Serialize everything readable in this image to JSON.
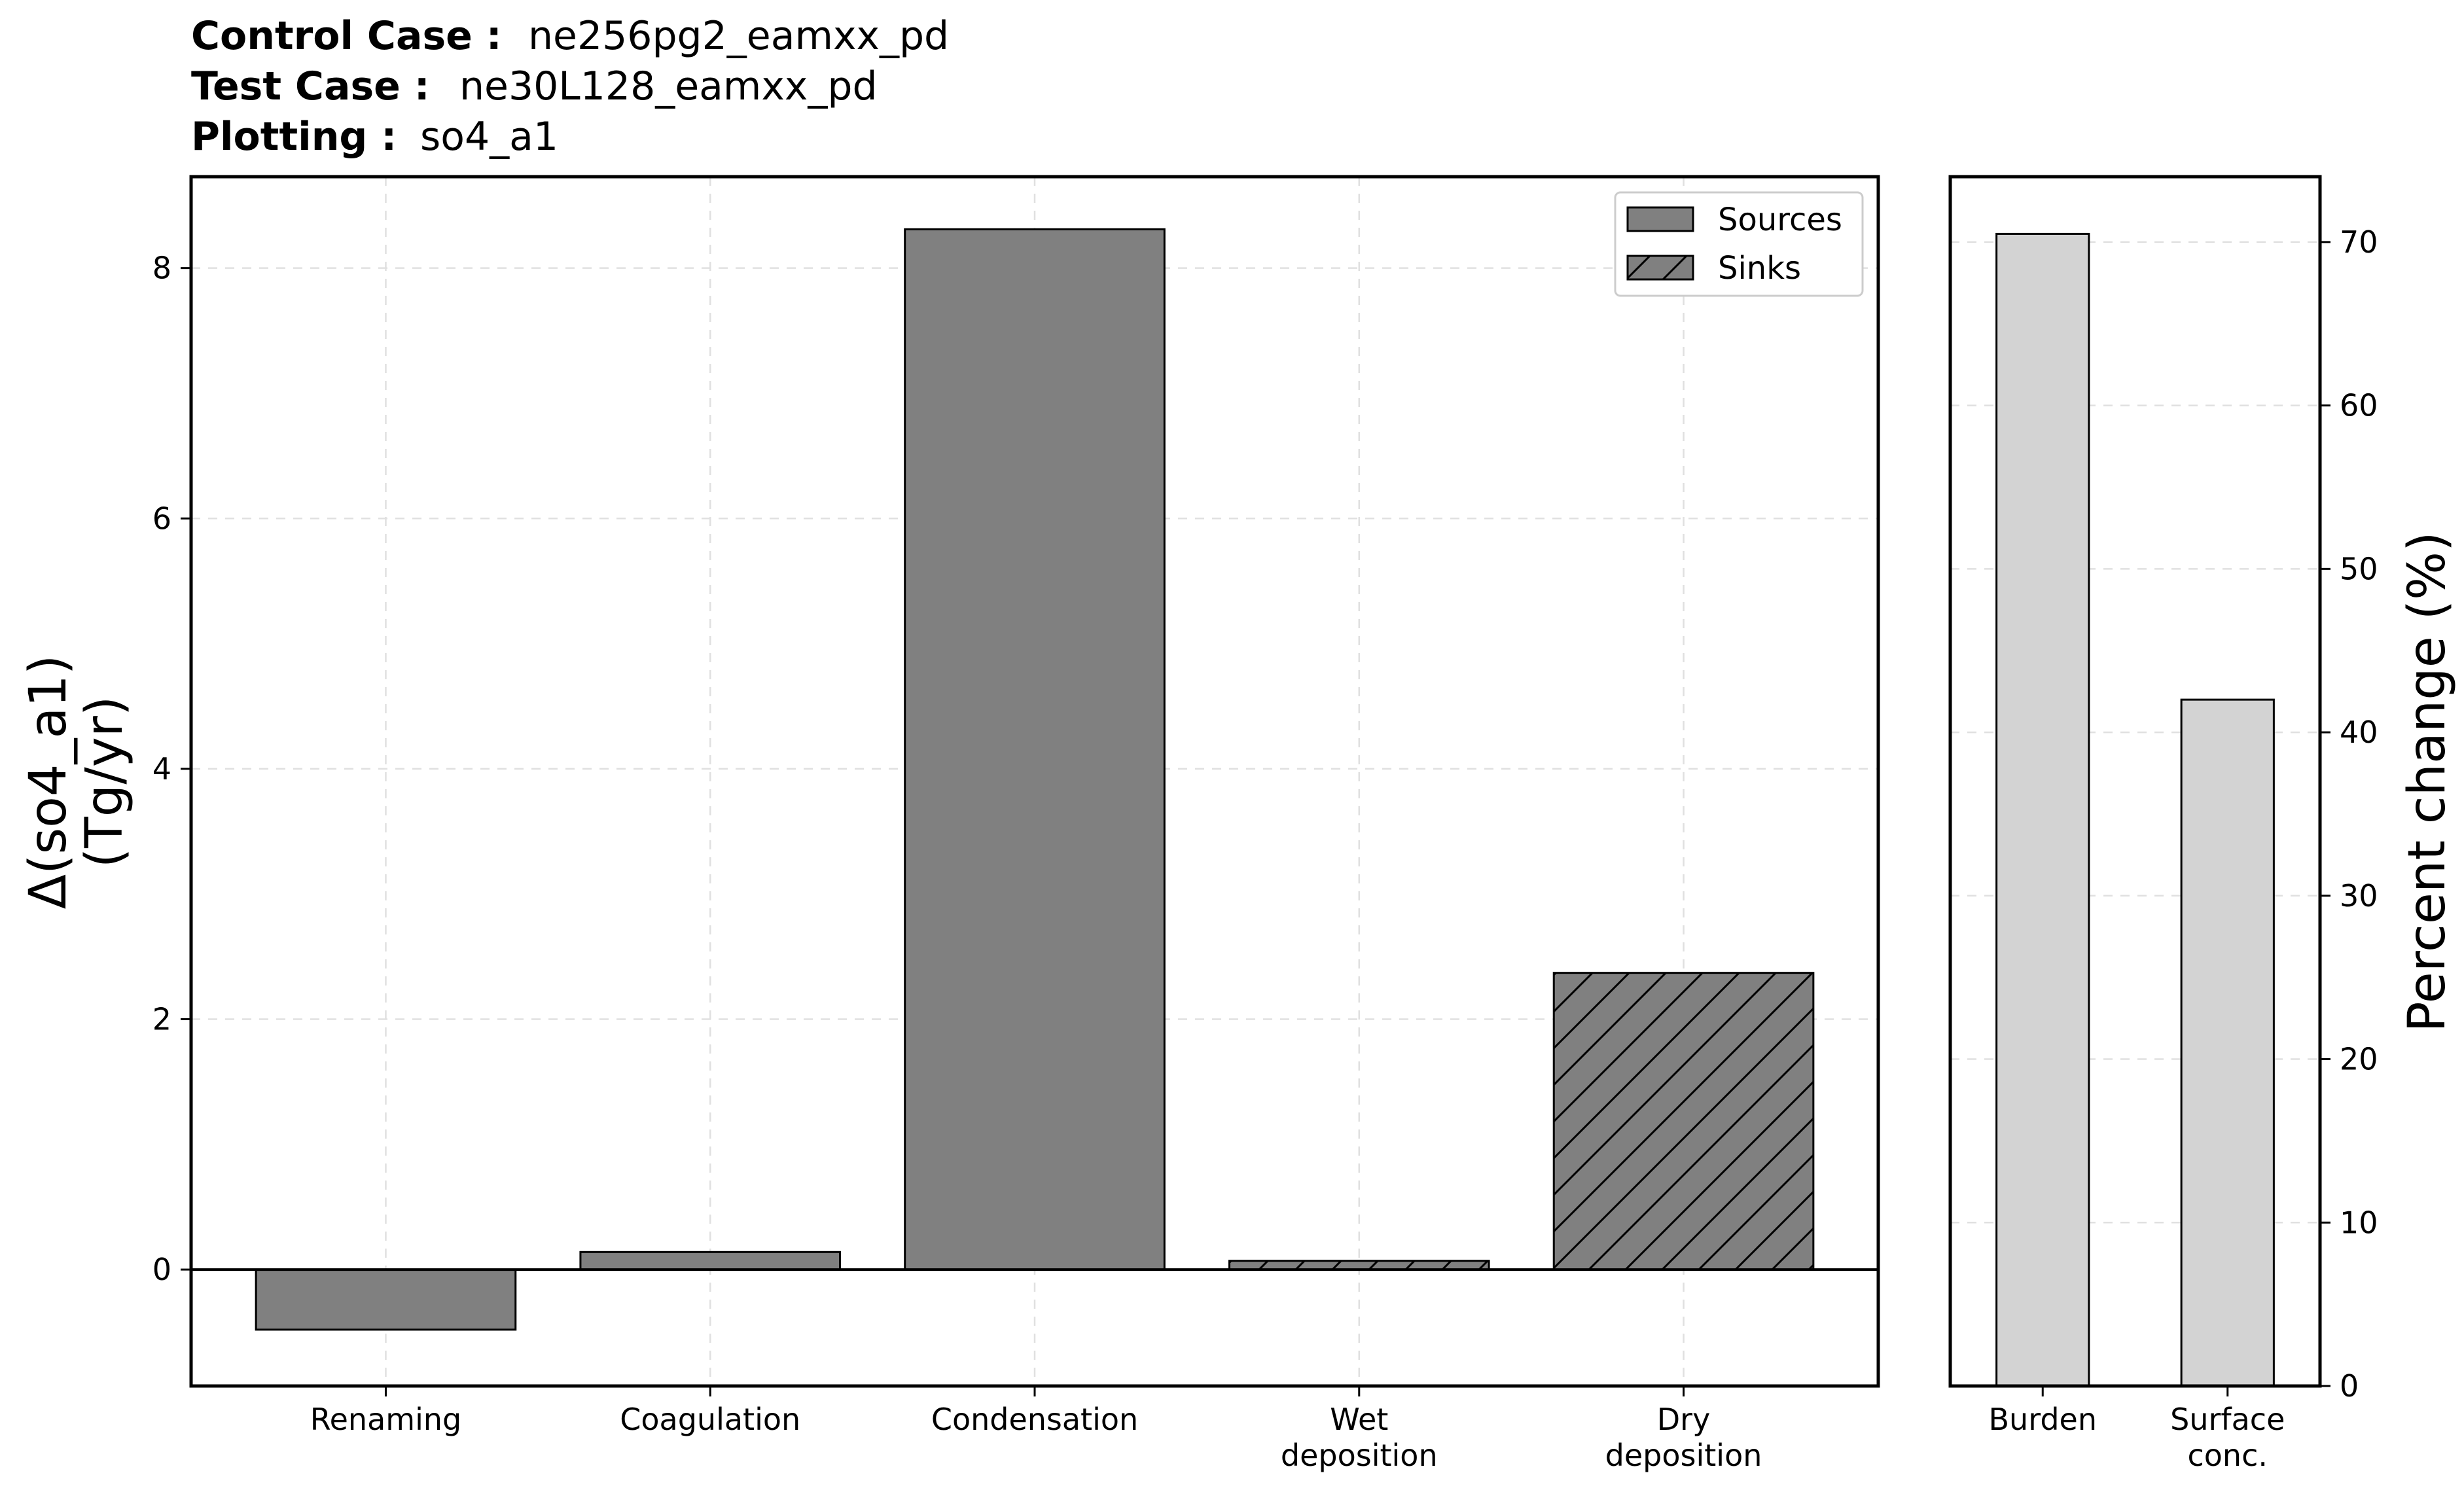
{
  "header": {
    "control_label": "Control Case :",
    "control_value": "ne256pg2_eamxx_pd",
    "test_label": "Test Case :",
    "test_value": "ne30L128_eamxx_pd",
    "plotting_label": "Plotting :",
    "plotting_value": "so4_a1"
  },
  "chart_data": [
    {
      "type": "bar",
      "panel": "budget",
      "categories": [
        [
          "Renaming"
        ],
        [
          "Coagulation"
        ],
        [
          "Condensation"
        ],
        [
          "Wet",
          "deposition"
        ],
        [
          "Dry",
          "deposition"
        ]
      ],
      "values": [
        -0.48,
        0.14,
        8.31,
        0.07,
        2.37
      ],
      "kinds": [
        "Sources",
        "Sources",
        "Sources",
        "Sinks",
        "Sinks"
      ],
      "ylabel": [
        "Δ(so4_a1)",
        "(Tg/yr)"
      ],
      "ylim": [
        -0.93,
        8.73
      ],
      "yticks": [
        0,
        2,
        4,
        6,
        8
      ],
      "grid": true,
      "bar_color": "#808080",
      "legend": {
        "placement": "top-right",
        "entries": [
          {
            "name": "Sources",
            "hatch": false
          },
          {
            "name": "Sinks",
            "hatch": true
          }
        ]
      }
    },
    {
      "type": "bar",
      "panel": "percent-change",
      "categories": [
        [
          "Burden"
        ],
        [
          "Surface",
          "conc."
        ]
      ],
      "values": [
        70.5,
        42.0
      ],
      "ylabel": "Percent change (%)",
      "ylim": [
        0,
        74
      ],
      "yticks": [
        0,
        10,
        20,
        30,
        40,
        50,
        60,
        70
      ],
      "yaxis_side": "right",
      "grid": true,
      "bar_color": "#d3d3d3"
    }
  ]
}
